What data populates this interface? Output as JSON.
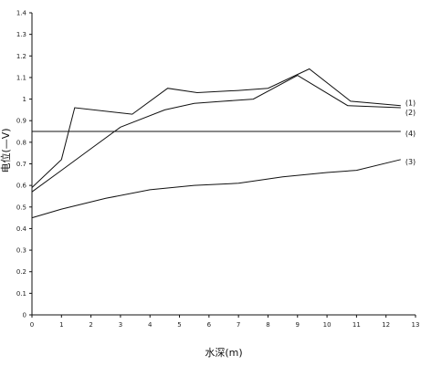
{
  "chart_data": {
    "type": "line",
    "title": "",
    "xlabel": "水深(m)",
    "ylabel": "电位(—V)",
    "xlim": [
      0,
      13
    ],
    "ylim": [
      0,
      1.4
    ],
    "xticks": [
      "0",
      "1",
      "2",
      "3",
      "4",
      "5",
      "6",
      "7",
      "8",
      "9",
      "10",
      "11",
      "12",
      "13"
    ],
    "yticks": [
      "0",
      "0.1",
      "0.2",
      "0.3",
      "0.4",
      "0.5",
      "0.6",
      "0.7",
      "0.8",
      "0.9",
      "1",
      "1.1",
      "1.2",
      "1.3",
      "1.4"
    ],
    "grid": false,
    "legend": "labels at right end of lines",
    "series": [
      {
        "name": "(1)",
        "x": [
          0,
          1.0,
          1.45,
          3.4,
          4.6,
          5.6,
          7.0,
          8.0,
          9.4,
          10.8,
          12.5
        ],
        "y": [
          0.59,
          0.72,
          0.96,
          0.93,
          1.05,
          1.03,
          1.04,
          1.05,
          1.14,
          0.99,
          0.97
        ]
      },
      {
        "name": "(2)",
        "x": [
          0,
          1.0,
          2.0,
          3.0,
          4.5,
          5.5,
          6.5,
          7.5,
          9.0,
          10.7,
          12.5
        ],
        "y": [
          0.57,
          0.67,
          0.77,
          0.87,
          0.95,
          0.98,
          0.99,
          1.0,
          1.11,
          0.97,
          0.96
        ]
      },
      {
        "name": "(3)",
        "x": [
          0,
          1.0,
          2.5,
          4.0,
          5.5,
          7.0,
          8.5,
          10.0,
          11.0,
          12.5
        ],
        "y": [
          0.45,
          0.49,
          0.54,
          0.58,
          0.6,
          0.61,
          0.64,
          0.66,
          0.67,
          0.72
        ]
      },
      {
        "name": "(4)",
        "x": [
          0,
          12.5
        ],
        "y": [
          0.85,
          0.85
        ]
      }
    ]
  }
}
